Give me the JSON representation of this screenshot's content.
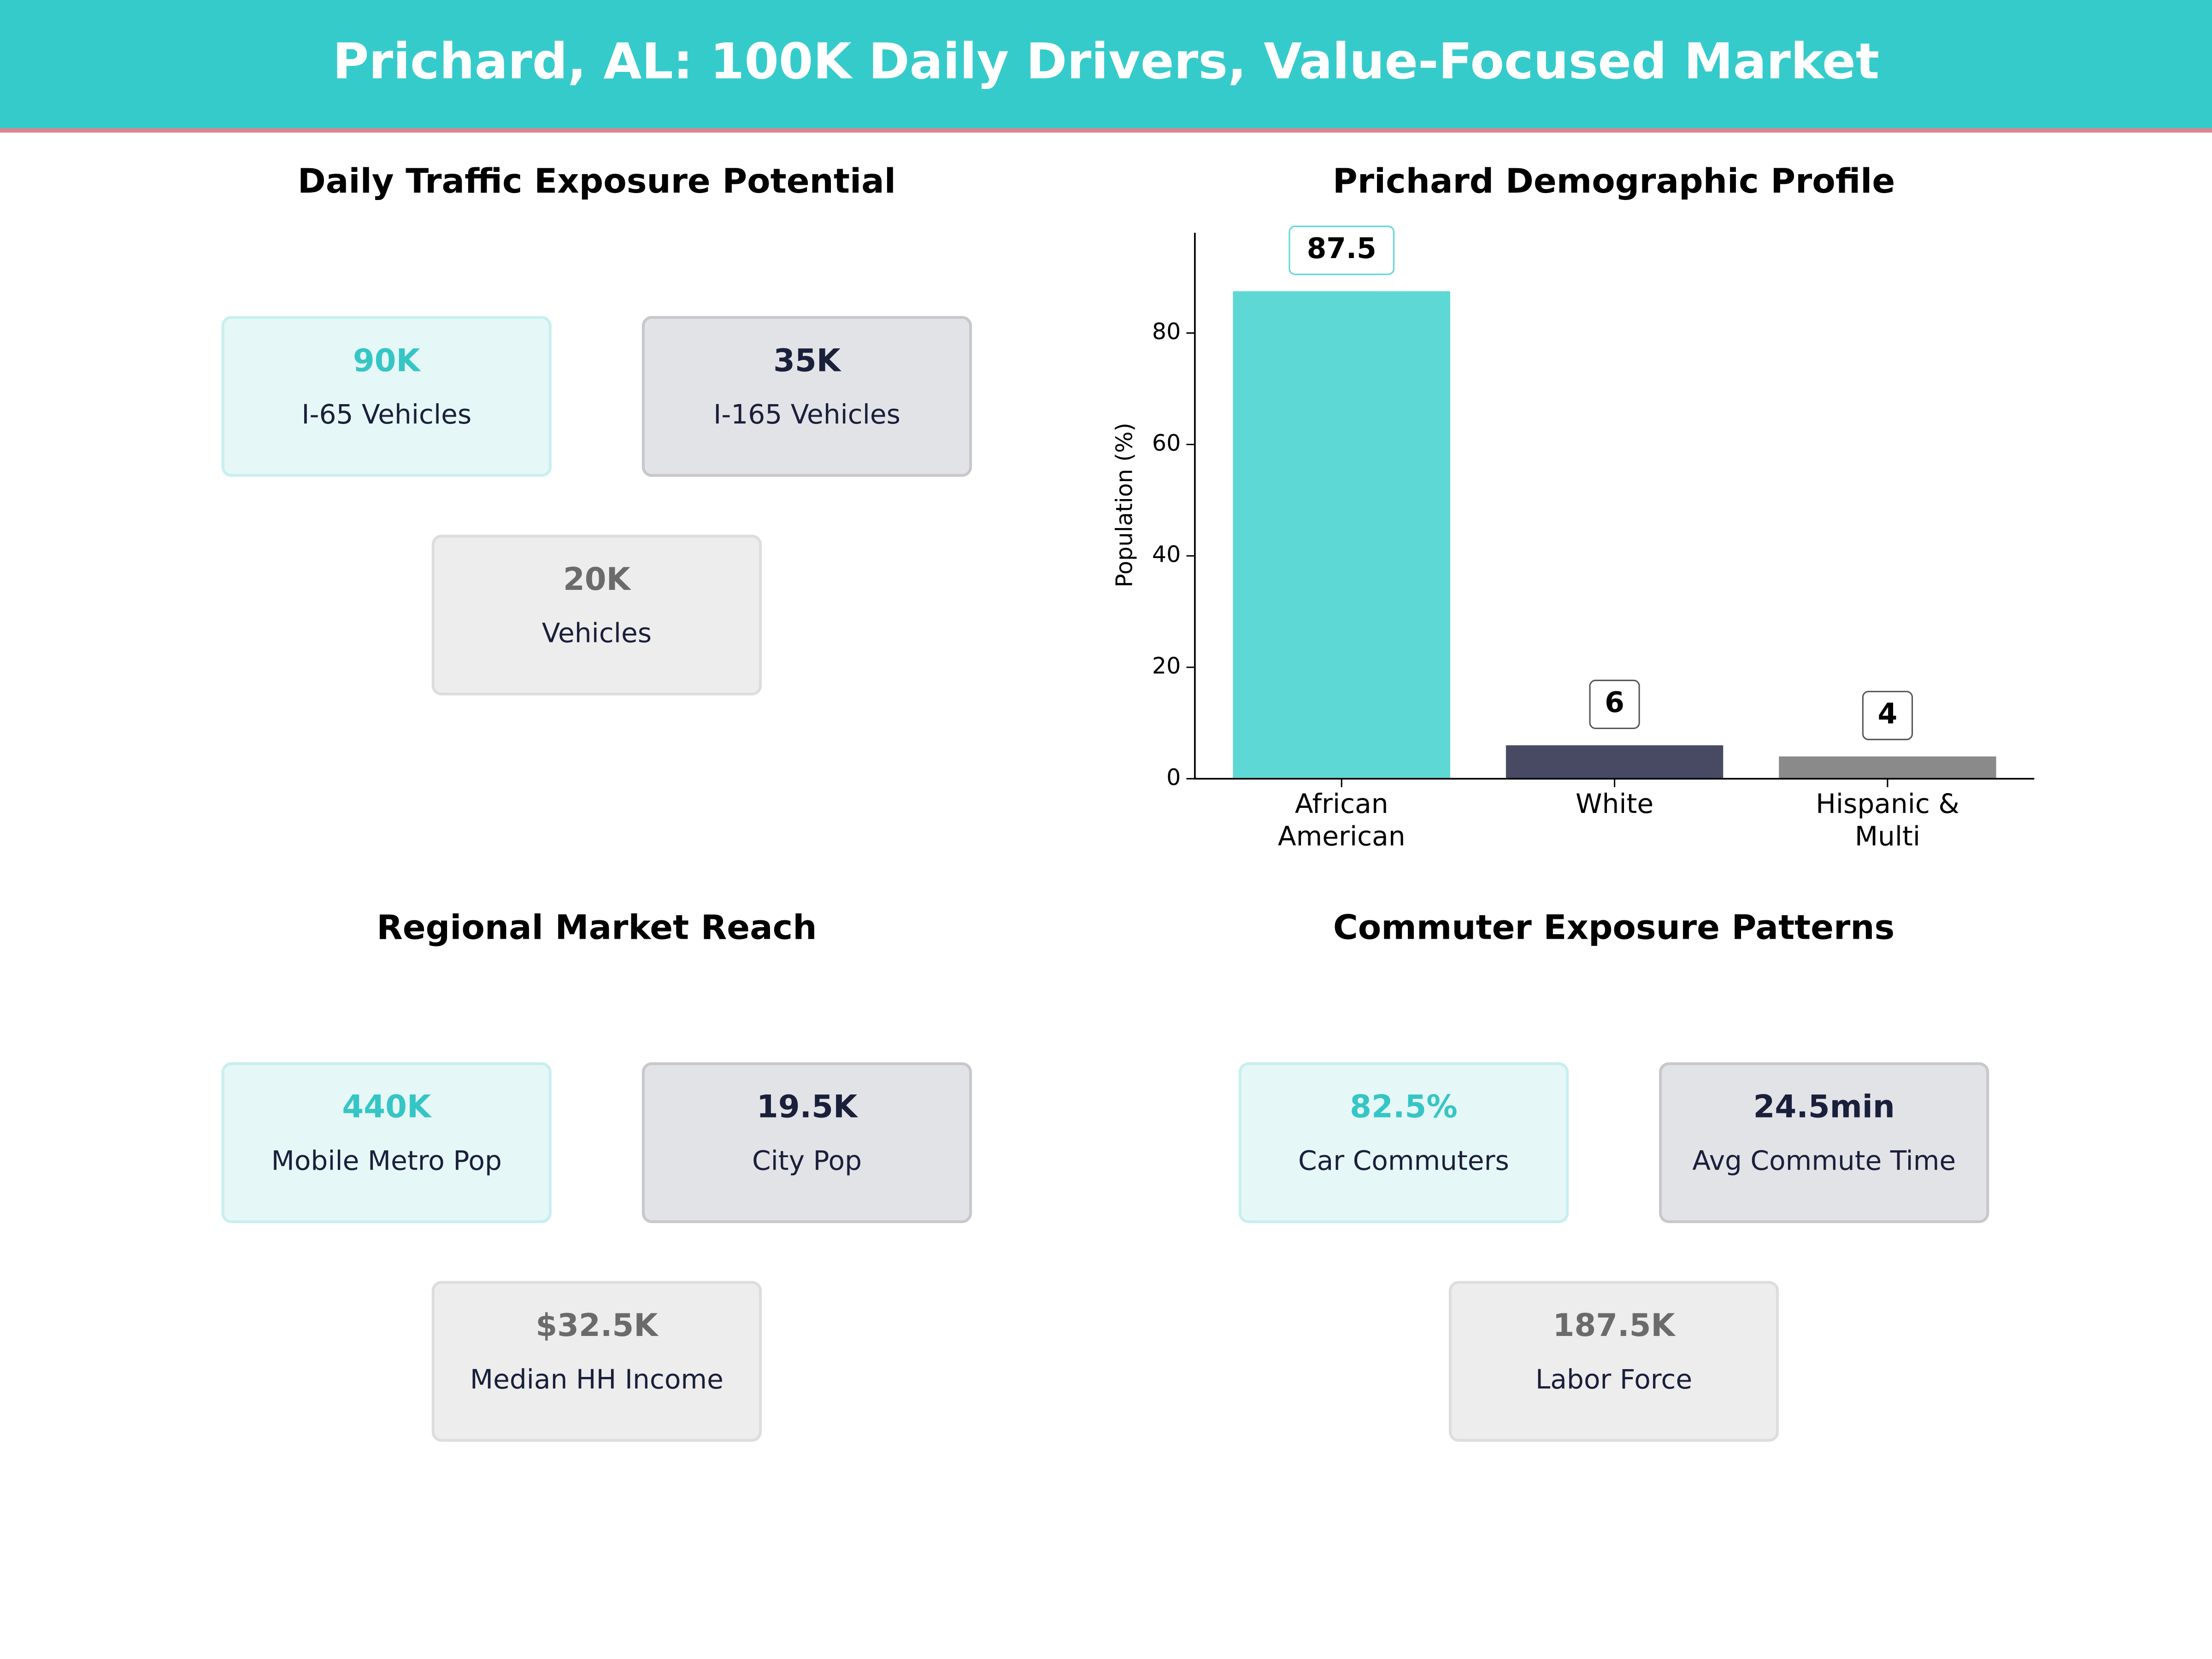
{
  "title": "Prichard, AL: 100K Daily Drivers, Value-Focused Market",
  "panels": [
    {
      "title": "Daily Traffic Exposure Potential",
      "cards": [
        {
          "value": "90K",
          "label": "I-65  Vehicles"
        },
        {
          "value": "35K",
          "label": "I-165  Vehicles"
        },
        {
          "value": "20K",
          "label": "Vehicles"
        }
      ]
    },
    {
      "title": "Regional Market Reach",
      "cards": [
        {
          "value": "440K",
          "label": "Mobile Metro Pop"
        },
        {
          "value": "19.5K",
          "label": "City Pop"
        },
        {
          "value": "$32.5K",
          "label": "Median HH Income"
        }
      ]
    },
    {
      "title": "Commuter Exposure Patterns",
      "cards": [
        {
          "value": "82.5%",
          "label": "Car Commuters"
        },
        {
          "value": "24.5min",
          "label": "Avg Commute Time"
        },
        {
          "value": "187.5K",
          "label": "Labor Force"
        }
      ]
    }
  ],
  "chart_data": {
    "type": "bar",
    "title": "Prichard Demographic Profile",
    "y_label": "Population (%)",
    "categories": [
      "African\nAmerican",
      "White",
      "Hispanic &\nMulti"
    ],
    "values": [
      87.5,
      6,
      4
    ],
    "colors": [
      "#5dd8d5",
      "#474a62",
      "#8a8a8a"
    ],
    "ylim": [
      0,
      98
    ],
    "yticks": [
      0,
      20,
      40,
      60,
      80
    ]
  }
}
